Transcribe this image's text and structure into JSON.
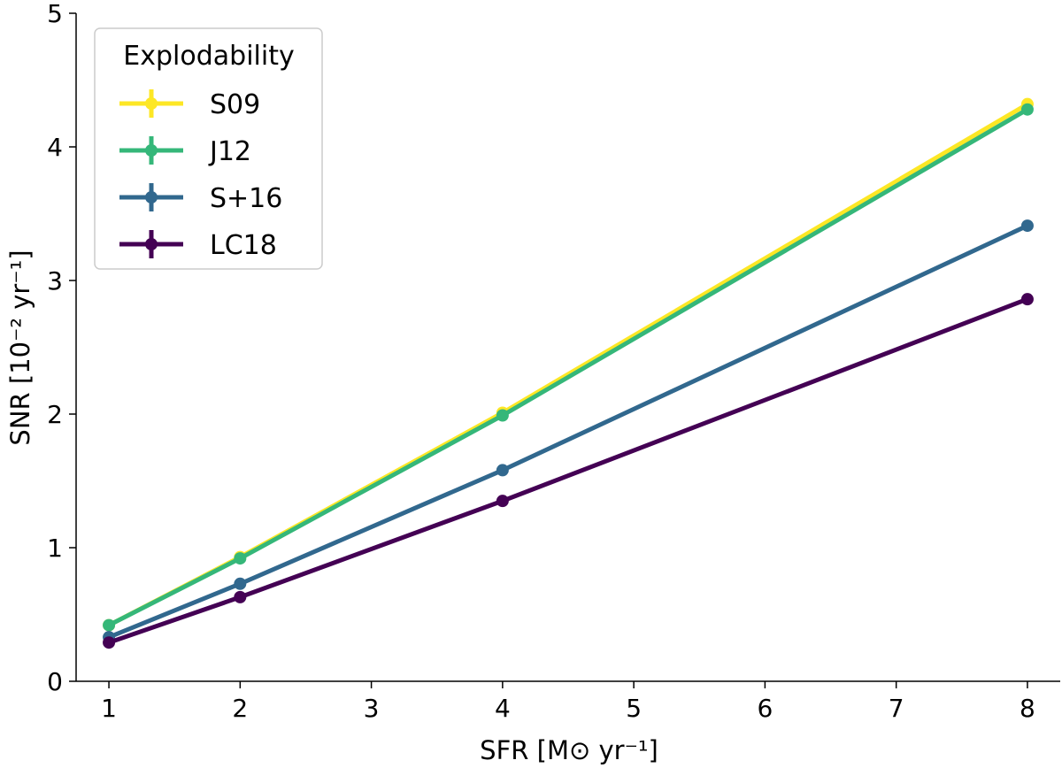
{
  "chart_data": {
    "type": "line",
    "xlabel": "SFR [M⊙ yr⁻¹]",
    "ylabel": "SNR [10⁻² yr⁻¹]",
    "xlim": [
      0.75,
      8.25
    ],
    "ylim": [
      0,
      5
    ],
    "xticks": [
      "1",
      "2",
      "3",
      "4",
      "5",
      "6",
      "7",
      "8"
    ],
    "yticks": [
      "0",
      "1",
      "2",
      "3",
      "4",
      "5"
    ],
    "grid": false,
    "legend": {
      "title": "Explodability",
      "placement": "top-left"
    },
    "x": [
      1,
      2,
      4,
      8
    ],
    "series": [
      {
        "name": "S09",
        "color": "#fde725",
        "values": [
          0.42,
          0.93,
          2.01,
          4.32
        ]
      },
      {
        "name": "J12",
        "color": "#35b779",
        "values": [
          0.42,
          0.92,
          1.99,
          4.28
        ]
      },
      {
        "name": "S+16",
        "color": "#31688e",
        "values": [
          0.33,
          0.73,
          1.58,
          3.41
        ]
      },
      {
        "name": "LC18",
        "color": "#440154",
        "values": [
          0.29,
          0.63,
          1.35,
          2.86
        ]
      }
    ]
  }
}
